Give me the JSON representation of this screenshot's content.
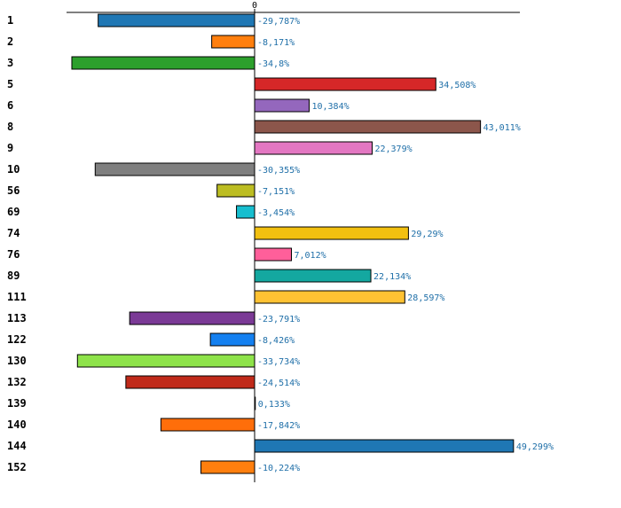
{
  "chart_data": {
    "type": "bar",
    "orientation": "horizontal",
    "title": "",
    "xlabel": "",
    "ylabel": "",
    "value_suffix": "%",
    "zero_tick": "0",
    "xlim": [
      -35.8,
      52.2
    ],
    "grid": false,
    "legend": "none",
    "categories": [
      "1",
      "2",
      "3",
      "5",
      "6",
      "8",
      "9",
      "10",
      "56",
      "69",
      "74",
      "76",
      "89",
      "111",
      "113",
      "122",
      "130",
      "132",
      "139",
      "140",
      "144",
      "152"
    ],
    "values": [
      -29.787,
      -8.171,
      -34.8,
      34.508,
      10.384,
      43.011,
      22.379,
      -30.355,
      -7.151,
      -3.454,
      29.29,
      7.012,
      22.134,
      28.597,
      -23.791,
      -8.426,
      -33.734,
      -24.514,
      0.133,
      -17.842,
      49.299,
      -10.224
    ],
    "value_labels": [
      "-29,787%",
      "-8,171%",
      "-34,8%",
      "34,508%",
      "10,384%",
      "43,011%",
      "22,379%",
      "-30,355%",
      "-7,151%",
      "-3,454%",
      "29,29%",
      "7,012%",
      "22,134%",
      "28,597%",
      "-23,791%",
      "-8,426%",
      "-33,734%",
      "-24,514%",
      "0,133%",
      "-17,842%",
      "49,299%",
      "-10,224%"
    ],
    "colors": [
      "#1f77b4",
      "#ff7f0e",
      "#2ca02c",
      "#d62728",
      "#9467bd",
      "#8c564b",
      "#e377c2",
      "#7f7f7f",
      "#bcbd22",
      "#17becf",
      "#f2c010",
      "#ff5f9a",
      "#14a8a0",
      "#ffc233",
      "#7b3a96",
      "#1480f0",
      "#8ee34a",
      "#c02a1a",
      "#22c8a0",
      "#ff6e0a",
      "#1f77b4",
      "#ff7f0e"
    ]
  }
}
